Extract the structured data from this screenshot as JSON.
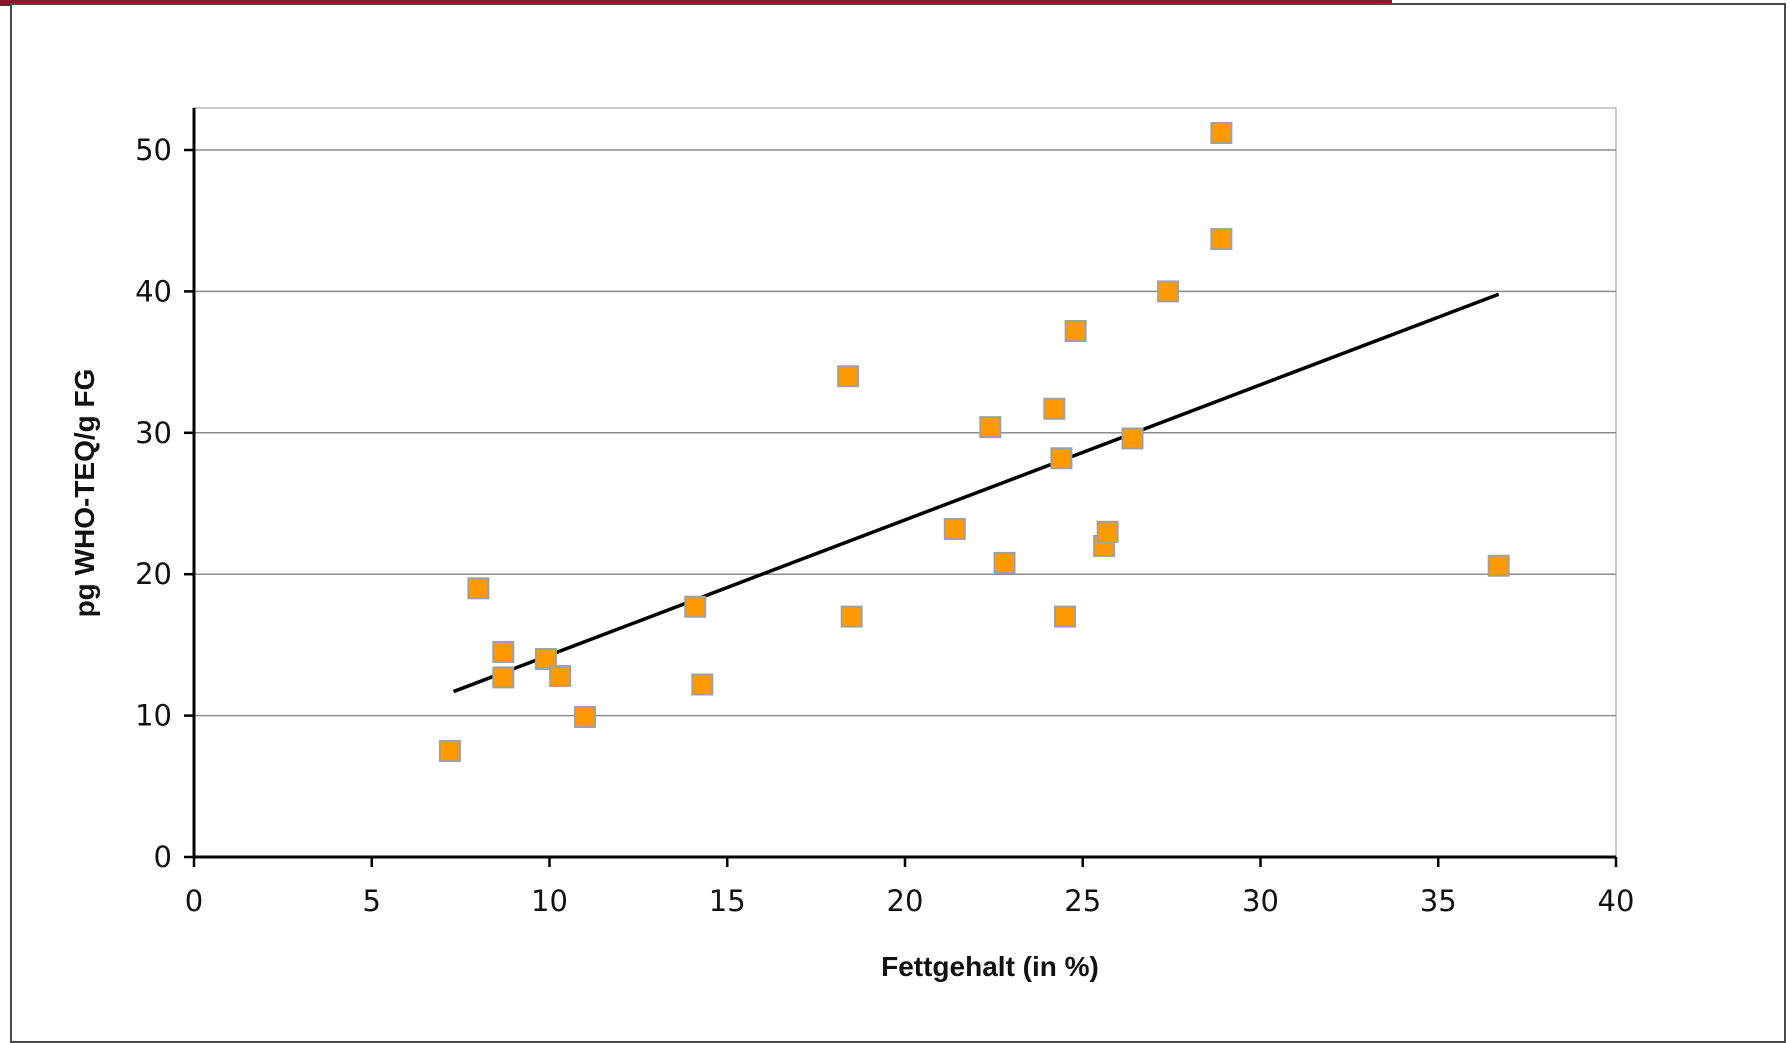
{
  "chart_data": {
    "type": "scatter",
    "title": "",
    "xlabel": "Fettgehalt (in %)",
    "ylabel": "pg WHO-TEQ/g FG",
    "xlim": [
      0,
      40
    ],
    "ylim": [
      0,
      53
    ],
    "x_ticks": [
      "0",
      "5",
      "10",
      "15",
      "20",
      "25",
      "30",
      "35",
      "40"
    ],
    "y_ticks": [
      "0",
      "10",
      "20",
      "30",
      "40",
      "50"
    ],
    "grid": "horizontal",
    "legend": "none",
    "series": [
      {
        "marker": "square",
        "color": "#ff9900",
        "points": [
          {
            "x": 7.2,
            "y": 7.5
          },
          {
            "x": 8.0,
            "y": 19.0
          },
          {
            "x": 8.7,
            "y": 14.5
          },
          {
            "x": 8.7,
            "y": 12.7
          },
          {
            "x": 9.9,
            "y": 14.0
          },
          {
            "x": 10.3,
            "y": 12.8
          },
          {
            "x": 11.0,
            "y": 9.9
          },
          {
            "x": 14.1,
            "y": 17.7
          },
          {
            "x": 14.3,
            "y": 12.2
          },
          {
            "x": 18.4,
            "y": 34.0
          },
          {
            "x": 18.5,
            "y": 17.0
          },
          {
            "x": 21.4,
            "y": 23.2
          },
          {
            "x": 22.4,
            "y": 30.4
          },
          {
            "x": 22.8,
            "y": 20.8
          },
          {
            "x": 24.2,
            "y": 31.7
          },
          {
            "x": 24.4,
            "y": 28.2
          },
          {
            "x": 24.5,
            "y": 17.0
          },
          {
            "x": 24.8,
            "y": 37.2
          },
          {
            "x": 25.6,
            "y": 22.0
          },
          {
            "x": 25.7,
            "y": 23.0
          },
          {
            "x": 26.4,
            "y": 29.6
          },
          {
            "x": 27.4,
            "y": 40.0
          },
          {
            "x": 28.9,
            "y": 51.2
          },
          {
            "x": 28.9,
            "y": 43.7
          },
          {
            "x": 36.7,
            "y": 20.6
          }
        ]
      }
    ],
    "trendline": {
      "type": "linear",
      "x": [
        7.3,
        36.7
      ],
      "y": [
        11.7,
        39.8
      ],
      "color": "#000000"
    }
  }
}
